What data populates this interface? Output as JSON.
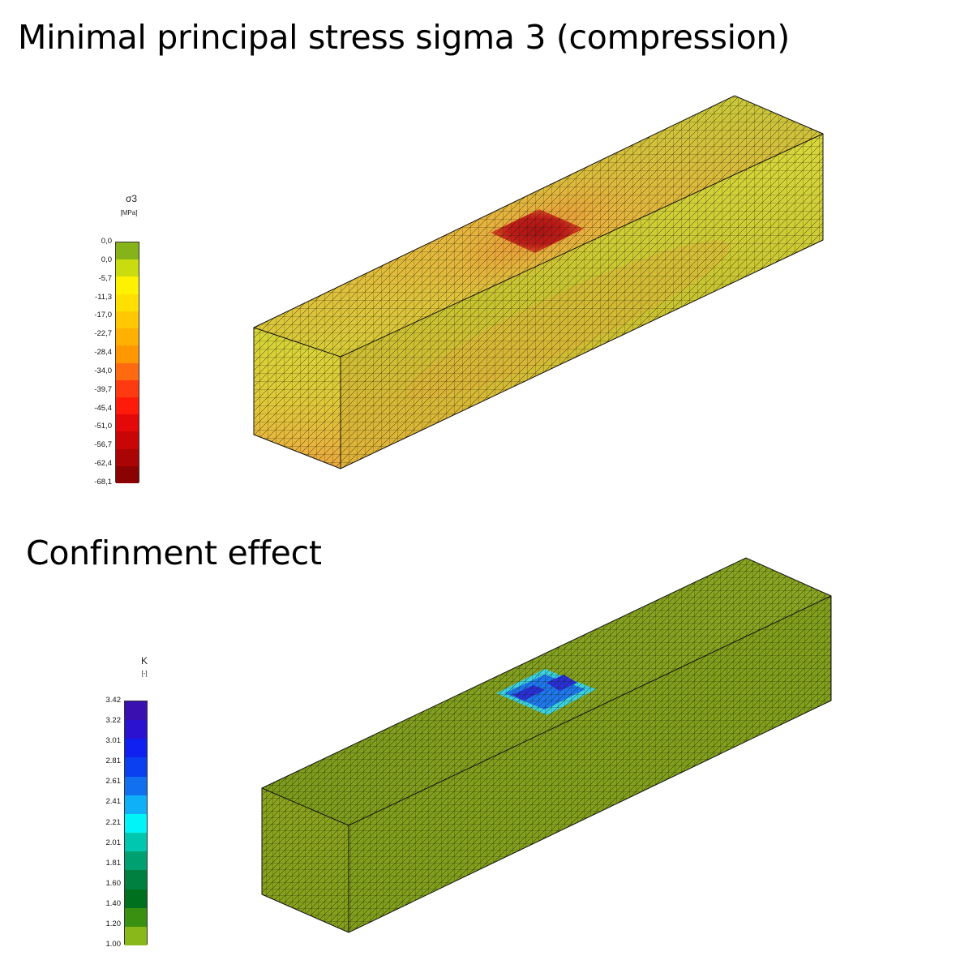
{
  "panel1": {
    "title": "Minimal principal stress sigma 3 (compression)",
    "legend": {
      "symbol": "σ3",
      "unit": "[MPa]",
      "ticks": [
        "0,0",
        "0,0",
        "-5,7",
        "-11,3",
        "-17,0",
        "-22,7",
        "-28,4",
        "-34,0",
        "-39,7",
        "-45,4",
        "-51,0",
        "-56,7",
        "-62,4",
        "-68,1"
      ],
      "colors": [
        "#86b21a",
        "#c8dc10",
        "#fff200",
        "#ffe000",
        "#ffc800",
        "#ffb000",
        "#ff9800",
        "#ff6a10",
        "#ff3a10",
        "#ff1a0a",
        "#e40808",
        "#c80606",
        "#aa0404",
        "#8a0202"
      ]
    },
    "beam_colors": {
      "base": "#c8c832",
      "warm": "#e8a838",
      "hot": "#b01818"
    }
  },
  "panel2": {
    "title": "Confinment effect",
    "legend": {
      "symbol": "K",
      "unit": "[-]",
      "ticks": [
        "3.42",
        "3.22",
        "3.01",
        "2.81",
        "2.61",
        "2.41",
        "2.21",
        "2.01",
        "1.81",
        "1.60",
        "1.40",
        "1.20",
        "1.00"
      ],
      "colors": [
        "#3a10b0",
        "#2a12d0",
        "#1020f0",
        "#0a40f0",
        "#1070f0",
        "#10b0f8",
        "#00f4f8",
        "#00c8b0",
        "#00a070",
        "#008040",
        "#00701e",
        "#3a9010",
        "#88b81a"
      ]
    },
    "beam_colors": {
      "base": "#8aa020",
      "hot": "#2a5ae0",
      "halo": "#40d8e8"
    }
  }
}
